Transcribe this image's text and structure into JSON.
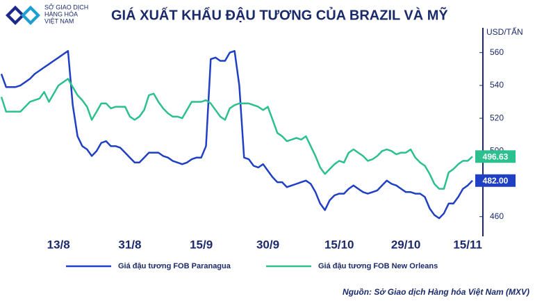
{
  "logo_text": [
    "SỞ GIAO DỊCH",
    "HÀNG HÓA",
    "VIỆT NAM"
  ],
  "chart_data": {
    "type": "line",
    "title": "GIÁ XUẤT KHẨU ĐẬU TƯƠNG CỦA BRAZIL VÀ MỸ",
    "ylabel": "USD/TẤN",
    "source": "Nguồn: Sở Giao dịch Hàng hóa Việt Nam (MXV)",
    "categories": [
      null,
      null,
      null,
      null,
      null,
      null,
      null,
      null,
      null,
      null,
      null,
      null,
      "13/8",
      null,
      null,
      null,
      null,
      null,
      null,
      null,
      null,
      null,
      null,
      null,
      null,
      null,
      null,
      "31/8",
      null,
      null,
      null,
      null,
      null,
      null,
      null,
      null,
      null,
      null,
      null,
      null,
      null,
      null,
      "15/9",
      null,
      null,
      null,
      null,
      null,
      null,
      null,
      null,
      null,
      null,
      null,
      null,
      null,
      "30/9",
      null,
      null,
      null,
      null,
      null,
      null,
      null,
      null,
      null,
      null,
      null,
      null,
      null,
      null,
      "15/10",
      null,
      null,
      null,
      null,
      null,
      null,
      null,
      null,
      null,
      null,
      null,
      null,
      null,
      "29/10",
      null,
      null,
      null,
      null,
      null,
      null,
      null,
      null,
      null,
      null,
      null,
      null,
      "15/11",
      null
    ],
    "ylim": [
      448,
      573
    ],
    "yticks": [
      460,
      480,
      500,
      520,
      540,
      560
    ],
    "grid": false,
    "axis_side": "right",
    "series": [
      {
        "name": "Giá đậu tương FOB Paranagua",
        "color": "#1f3fc4",
        "values": [
          547,
          539,
          539,
          539,
          540,
          542,
          544,
          547,
          549,
          551,
          553,
          555,
          557,
          559,
          561,
          528,
          509,
          503,
          501,
          497,
          500,
          505,
          506,
          503,
          503,
          502,
          499,
          496,
          493,
          493,
          496,
          499,
          499,
          499,
          497,
          496,
          494,
          493,
          492,
          493,
          495,
          496,
          496,
          503,
          556,
          557,
          555,
          555,
          560,
          561,
          540,
          496,
          495,
          491,
          490,
          492,
          488,
          484,
          481,
          481,
          478,
          479,
          480,
          481,
          482,
          480,
          475,
          468,
          464,
          470,
          473,
          474,
          474,
          477,
          479,
          477,
          475,
          474,
          475,
          476,
          479,
          482,
          480,
          479,
          477,
          475,
          475,
          474,
          474,
          472,
          465,
          461,
          459,
          462,
          468,
          468,
          472,
          477,
          479,
          482
        ],
        "value_labels": [
          null,
          null,
          null,
          null,
          null,
          null,
          null,
          null,
          null,
          null,
          null,
          null,
          null,
          null,
          null,
          null,
          null,
          null,
          null,
          null,
          null,
          null,
          null,
          null,
          null,
          null,
          null,
          null,
          null,
          null,
          null,
          null,
          null,
          null,
          null,
          null,
          null,
          null,
          null,
          null,
          null,
          null,
          null,
          null,
          null,
          null,
          null,
          null,
          null,
          null,
          null,
          null,
          null,
          null,
          null,
          null,
          null,
          null,
          null,
          null,
          null,
          null,
          null,
          null,
          null,
          null,
          null,
          null,
          null,
          null,
          null,
          null,
          null,
          null,
          null,
          null,
          null,
          null,
          null,
          null,
          null,
          null,
          null,
          null,
          null,
          null,
          null,
          null,
          null,
          null,
          null,
          null,
          null,
          null,
          null,
          null,
          null,
          null,
          null,
          "482.00"
        ]
      },
      {
        "name": "Giá đậu tương FOB New Orleans",
        "color": "#2bc08e",
        "values": [
          533,
          524,
          524,
          524,
          524,
          527,
          530,
          531,
          532,
          536,
          530,
          535,
          540,
          542,
          544,
          539,
          534,
          531,
          527,
          519,
          524,
          529,
          529,
          526,
          527,
          527,
          527,
          521,
          519,
          521,
          525,
          534,
          535,
          530,
          526,
          523,
          521,
          521,
          520,
          525,
          530,
          530,
          530,
          531,
          529,
          525,
          521,
          519,
          526,
          528,
          529,
          529,
          529,
          528,
          527,
          525,
          527,
          519,
          511,
          509,
          506,
          507,
          508,
          507,
          509,
          503,
          497,
          490,
          486,
          489,
          492,
          494,
          493,
          499,
          501,
          499,
          497,
          494,
          495,
          497,
          500,
          501,
          500,
          498,
          499,
          499,
          501,
          496,
          493,
          491,
          486,
          480,
          477,
          477,
          487,
          489,
          492,
          494,
          494,
          496.63
        ],
        "value_labels": [
          null,
          null,
          null,
          null,
          null,
          null,
          null,
          null,
          null,
          null,
          null,
          null,
          null,
          null,
          null,
          null,
          null,
          null,
          null,
          null,
          null,
          null,
          null,
          null,
          null,
          null,
          null,
          null,
          null,
          null,
          null,
          null,
          null,
          null,
          null,
          null,
          null,
          null,
          null,
          null,
          null,
          null,
          null,
          null,
          null,
          null,
          null,
          null,
          null,
          null,
          null,
          null,
          null,
          null,
          null,
          null,
          null,
          null,
          null,
          null,
          null,
          null,
          null,
          null,
          null,
          null,
          null,
          null,
          null,
          null,
          null,
          null,
          null,
          null,
          null,
          null,
          null,
          null,
          null,
          null,
          null,
          null,
          null,
          null,
          null,
          null,
          null,
          null,
          null,
          null,
          null,
          null,
          null,
          null,
          null,
          null,
          null,
          null,
          null,
          "496.63"
        ]
      }
    ]
  }
}
